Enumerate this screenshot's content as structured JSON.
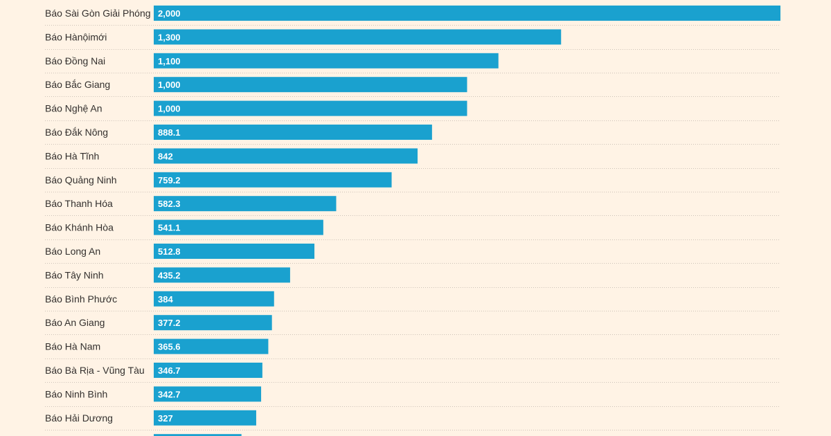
{
  "chart_data": {
    "type": "bar",
    "orientation": "horizontal",
    "title": "",
    "xlabel": "",
    "ylabel": "",
    "xlim": [
      0,
      2000
    ],
    "grid": false,
    "bar_color": "#1aa1cf",
    "background_color": "#fff3e5",
    "categories": [
      "Báo Sài Gòn Giải Phóng",
      "Báo Hànộimới",
      "Báo Đồng Nai",
      "Báo Bắc Giang",
      "Báo Nghệ An",
      "Báo Đắk Nông",
      "Báo Hà Tĩnh",
      "Báo Quảng Ninh",
      "Báo Thanh Hóa",
      "Báo Khánh Hòa",
      "Báo Long An",
      "Báo Tây Ninh",
      "Báo Bình Phước",
      "Báo An Giang",
      "Báo Hà Nam",
      "Báo Bà Rịa - Vũng Tàu",
      "Báo Ninh Bình",
      "Báo Hải Dương",
      ""
    ],
    "values": [
      2000,
      1300,
      1100,
      1000,
      1000,
      888.1,
      842,
      759.2,
      582.3,
      541.1,
      512.8,
      435.2,
      384,
      377.2,
      365.6,
      346.7,
      342.7,
      327,
      280
    ],
    "value_labels": [
      "2,000",
      "1,300",
      "1,100",
      "1,000",
      "1,000",
      "888.1",
      "842",
      "759.2",
      "582.3",
      "541.1",
      "512.8",
      "435.2",
      "384",
      "377.2",
      "365.6",
      "346.7",
      "342.7",
      "327",
      ""
    ]
  }
}
